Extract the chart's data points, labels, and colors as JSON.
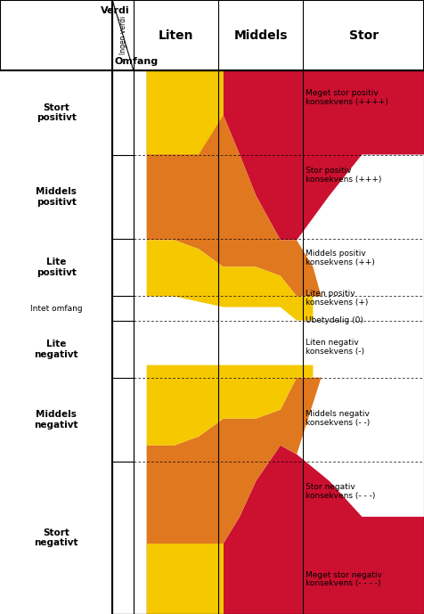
{
  "title": "",
  "fig_width": 4.76,
  "fig_height": 6.89,
  "dpi": 100,
  "colors": {
    "yellow": "#F5C800",
    "orange": "#E07820",
    "red": "#CC1030",
    "purple": "#B0A8C8",
    "white": "#FFFFFF",
    "black": "#000000",
    "grid_line": "#808080",
    "header_bg": "#FFFFFF"
  },
  "row_labels": [
    "Stort\npositivt",
    "Middels\npositivt",
    "Lite\npositivt",
    "Intet omfang",
    "Lite\nnegativt",
    "Middels\nnegativt",
    "Stort\nnegativt"
  ],
  "col_labels": [
    "Liten",
    "Middels",
    "Stor"
  ],
  "consequence_labels": [
    {
      "text": "Meget stor positiv\nkonsekvens (++++)",
      "row": 0,
      "color": "#CC1030"
    },
    {
      "text": "Stor positiv\nkonsekvens (+++)",
      "row": 1,
      "color": "#CC1030"
    },
    {
      "text": "Middels positiv\nkonsekvens (++)",
      "row": 2,
      "color": "#E07820"
    },
    {
      "text": "Liten positiv\nkonsekvens (+)",
      "row": 2.7,
      "color": "#E07820"
    },
    {
      "text": "Ubetydelig (0)",
      "row": 3,
      "color": "#000000"
    },
    {
      "text": "Liten negativ\nkonsekvens (-)",
      "row": 3.5,
      "color": "#E07820"
    },
    {
      "text": "Middels negativ\nkonsekvens (- -)",
      "row": 4.5,
      "color": "#E07820"
    },
    {
      "text": "Stor negativ\nkonsekvens (- - -)",
      "row": 5.5,
      "color": "#CC1030"
    },
    {
      "text": "Meget stor negativ\nkonsekvens (- - - -)",
      "row": 6.5,
      "color": "#CC1030"
    }
  ]
}
